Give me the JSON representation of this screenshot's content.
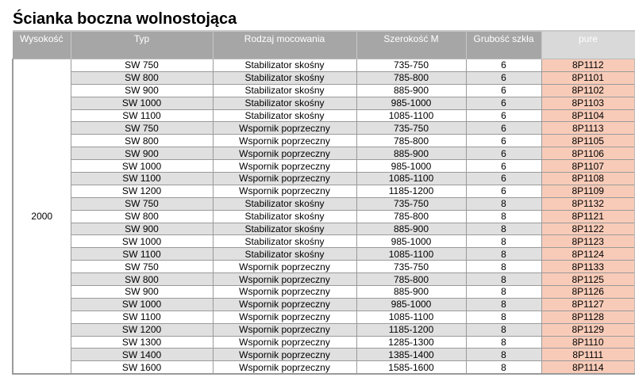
{
  "title": "Ścianka boczna wolnostojąca",
  "columns": [
    "Wysokość",
    "Typ",
    "Rodzaj mocowania",
    "Szerokość M",
    "Grubość szkła",
    "pure"
  ],
  "height_value": "2000",
  "colors": {
    "header": "#a6a6a6",
    "pure_header": "#d9d9d9",
    "pure_cell": "#f8cbb8",
    "alt_row": "#e0e0e0"
  },
  "rows": [
    [
      "SW 750",
      "Stabilizator skośny",
      "735-750",
      "6",
      "8P1112"
    ],
    [
      "SW 800",
      "Stabilizator skośny",
      "785-800",
      "6",
      "8P1101"
    ],
    [
      "SW 900",
      "Stabilizator skośny",
      "885-900",
      "6",
      "8P1102"
    ],
    [
      "SW 1000",
      "Stabilizator skośny",
      "985-1000",
      "6",
      "8P1103"
    ],
    [
      "SW 1100",
      "Stabilizator skośny",
      "1085-1100",
      "6",
      "8P1104"
    ],
    [
      "SW 750",
      "Wspornik poprzeczny",
      "735-750",
      "6",
      "8P1113"
    ],
    [
      "SW 800",
      "Wspornik poprzeczny",
      "785-800",
      "6",
      "8P1105"
    ],
    [
      "SW 900",
      "Wspornik poprzeczny",
      "885-900",
      "6",
      "8P1106"
    ],
    [
      "SW 1000",
      "Wspornik poprzeczny",
      "985-1000",
      "6",
      "8P1107"
    ],
    [
      "SW 1100",
      "Wspornik poprzeczny",
      "1085-1100",
      "6",
      "8P1108"
    ],
    [
      "SW 1200",
      "Wspornik poprzeczny",
      "1185-1200",
      "6",
      "8P1109"
    ],
    [
      "SW 750",
      "Stabilizator skośny",
      "735-750",
      "8",
      "8P1132"
    ],
    [
      "SW 800",
      "Stabilizator skośny",
      "785-800",
      "8",
      "8P1121"
    ],
    [
      "SW 900",
      "Stabilizator skośny",
      "885-900",
      "8",
      "8P1122"
    ],
    [
      "SW 1000",
      "Stabilizator skośny",
      "985-1000",
      "8",
      "8P1123"
    ],
    [
      "SW 1100",
      "Stabilizator skośny",
      "1085-1100",
      "8",
      "8P1124"
    ],
    [
      "SW 750",
      "Wspornik poprzeczny",
      "735-750",
      "8",
      "8P1133"
    ],
    [
      "SW 800",
      "Wspornik poprzeczny",
      "785-800",
      "8",
      "8P1125"
    ],
    [
      "SW 900",
      "Wspornik poprzeczny",
      "885-900",
      "8",
      "8P1126"
    ],
    [
      "SW 1000",
      "Wspornik poprzeczny",
      "985-1000",
      "8",
      "8P1127"
    ],
    [
      "SW 1100",
      "Wspornik poprzeczny",
      "1085-1100",
      "8",
      "8P1128"
    ],
    [
      "SW 1200",
      "Wspornik poprzeczny",
      "1185-1200",
      "8",
      "8P1129"
    ],
    [
      "SW 1300",
      "Wspornik poprzeczny",
      "1285-1300",
      "8",
      "8P1110"
    ],
    [
      "SW 1400",
      "Wspornik poprzeczny",
      "1385-1400",
      "8",
      "8P1111"
    ],
    [
      "SW 1600",
      "Wspornik poprzeczny",
      "1585-1600",
      "8",
      "8P1114"
    ]
  ]
}
